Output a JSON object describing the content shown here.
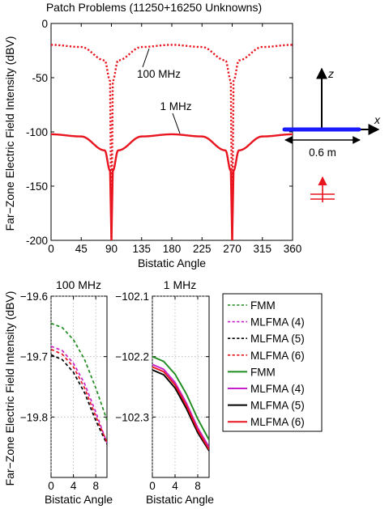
{
  "figure_title": "Patch Problems (11250+16250 Unknowns)",
  "diagram": {
    "z_label": "z",
    "x_label": "x",
    "dim_label": "0.6 m"
  },
  "chart_data": [
    {
      "type": "line",
      "title": "Patch Problems (11250+16250 Unknowns)",
      "xlabel": "Bistatic Angle",
      "ylabel": "Far−Zone Electric Field Intensity (dBV)",
      "xlim": [
        0,
        360
      ],
      "ylim": [
        -200,
        0
      ],
      "xticks": [
        0,
        45,
        90,
        135,
        180,
        225,
        270,
        315,
        360
      ],
      "yticks": [
        0,
        -50,
        -100,
        -150,
        -200
      ],
      "grid": false,
      "annotations": [
        "100 MHz",
        "1 MHz"
      ],
      "series": [
        {
          "name": "100 MHz",
          "color": "#e8141e",
          "style": "dotted",
          "x": [
            0,
            45,
            80,
            88,
            90,
            92,
            100,
            135,
            180,
            225,
            260,
            268,
            270,
            272,
            280,
            315,
            360
          ],
          "y": [
            -19.7,
            -21.7,
            -34,
            -53,
            -200,
            -53,
            -34,
            -21.7,
            -19.7,
            -21.7,
            -34,
            -53,
            -200,
            -53,
            -34,
            -21.7,
            -19.7
          ]
        },
        {
          "name": "1 MHz",
          "color": "#e8141e",
          "style": "solid",
          "x": [
            0,
            45,
            80,
            88,
            90,
            92,
            100,
            135,
            180,
            225,
            260,
            268,
            270,
            272,
            280,
            315,
            360
          ],
          "y": [
            -102.2,
            -104.2,
            -117,
            -136,
            -200,
            -136,
            -117,
            -104.2,
            -102.2,
            -104.2,
            -117,
            -136,
            -200,
            -136,
            -117,
            -104.2,
            -102.2
          ]
        }
      ]
    },
    {
      "type": "line",
      "title": "100 MHz",
      "xlabel": "Bistatic Angle",
      "ylabel": "Far−Zone Electric Field Intensity (dBV)",
      "xlim": [
        0,
        10
      ],
      "ylim": [
        -19.9,
        -19.6
      ],
      "xticks": [
        0,
        4,
        8
      ],
      "yticks": [
        -19.6,
        -19.7,
        -19.8
      ],
      "ytick_labels": [
        "−19.6",
        "−19.7",
        "−19.8"
      ],
      "grid": true,
      "series": [
        {
          "name": "FMM",
          "color": "#1e8c1e",
          "style": "dashed",
          "x": [
            0,
            2,
            4,
            6,
            8,
            10
          ],
          "y": [
            -19.645,
            -19.652,
            -19.672,
            -19.705,
            -19.752,
            -19.805
          ]
        },
        {
          "name": "MLFMA (4)",
          "color": "#c81ec8",
          "style": "dashed",
          "x": [
            0,
            2,
            4,
            6,
            8,
            10
          ],
          "y": [
            -19.683,
            -19.69,
            -19.711,
            -19.745,
            -19.792,
            -19.843
          ]
        },
        {
          "name": "MLFMA (5)",
          "color": "#000000",
          "style": "dashed",
          "x": [
            0,
            2,
            4,
            6,
            8,
            10
          ],
          "y": [
            -19.697,
            -19.705,
            -19.726,
            -19.76,
            -19.806,
            -19.845
          ]
        },
        {
          "name": "MLFMA (6)",
          "color": "#e8141e",
          "style": "dashed",
          "x": [
            0,
            2,
            4,
            6,
            8,
            10
          ],
          "y": [
            -19.688,
            -19.696,
            -19.717,
            -19.752,
            -19.799,
            -19.842
          ]
        }
      ]
    },
    {
      "type": "line",
      "title": "1 MHz",
      "xlabel": "Bistatic Angle",
      "ylabel": "",
      "xlim": [
        0,
        10
      ],
      "ylim": [
        -102.4,
        -102.1
      ],
      "xticks": [
        0,
        4,
        8
      ],
      "yticks": [
        -102.1,
        -102.2,
        -102.3
      ],
      "ytick_labels": [
        "−102.1",
        "−102.2",
        "−102.3"
      ],
      "grid": true,
      "series": [
        {
          "name": "FMM",
          "color": "#1e8c1e",
          "style": "solid",
          "x": [
            0,
            2,
            4,
            6,
            8,
            10
          ],
          "y": [
            -102.2,
            -102.208,
            -102.229,
            -102.262,
            -102.303,
            -102.338
          ]
        },
        {
          "name": "MLFMA (4)",
          "color": "#c81ec8",
          "style": "solid",
          "x": [
            0,
            2,
            4,
            6,
            8,
            10
          ],
          "y": [
            -102.213,
            -102.221,
            -102.243,
            -102.277,
            -102.318,
            -102.35
          ]
        },
        {
          "name": "MLFMA (5)",
          "color": "#000000",
          "style": "solid",
          "x": [
            0,
            2,
            4,
            6,
            8,
            10
          ],
          "y": [
            -102.222,
            -102.23,
            -102.252,
            -102.286,
            -102.326,
            -102.356
          ]
        },
        {
          "name": "MLFMA (6)",
          "color": "#e8141e",
          "style": "solid",
          "x": [
            0,
            2,
            4,
            6,
            8,
            10
          ],
          "y": [
            -102.217,
            -102.225,
            -102.247,
            -102.281,
            -102.322,
            -102.354
          ]
        }
      ]
    }
  ],
  "legend": {
    "placement": "right",
    "items": [
      {
        "label": "FMM",
        "color": "#1e8c1e",
        "style": "dashed"
      },
      {
        "label": "MLFMA (4)",
        "color": "#c81ec8",
        "style": "dashed"
      },
      {
        "label": "MLFMA (5)",
        "color": "#000000",
        "style": "dashed"
      },
      {
        "label": "MLFMA (6)",
        "color": "#e8141e",
        "style": "dashed"
      },
      {
        "label": "FMM",
        "color": "#1e8c1e",
        "style": "solid"
      },
      {
        "label": "MLFMA (4)",
        "color": "#c81ec8",
        "style": "solid"
      },
      {
        "label": "MLFMA (5)",
        "color": "#000000",
        "style": "solid"
      },
      {
        "label": "MLFMA (6)",
        "color": "#e8141e",
        "style": "solid"
      }
    ]
  }
}
